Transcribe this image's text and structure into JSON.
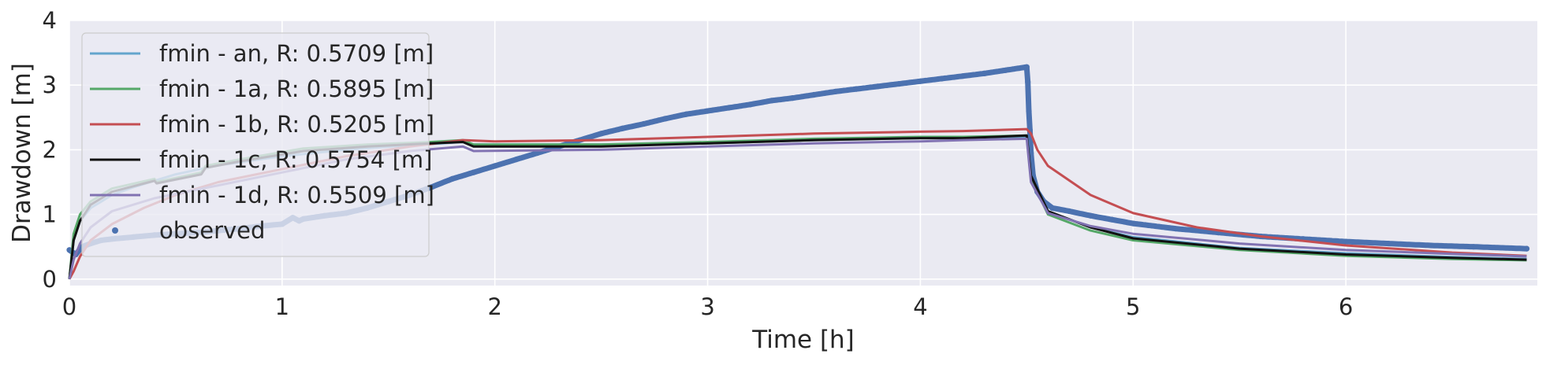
{
  "chart_data": {
    "type": "line",
    "title": "",
    "xlabel": "Time [h]",
    "ylabel": "Drawdown [m]",
    "xlim": [
      0,
      6.9
    ],
    "ylim": [
      -0.1,
      4
    ],
    "xticks": [
      "0",
      "1",
      "2",
      "3",
      "4",
      "5",
      "6"
    ],
    "yticks": [
      "0",
      "1",
      "2",
      "3",
      "4"
    ],
    "grid": true,
    "legend_position": "top-left",
    "colors": {
      "plot_bg": "#eaeaf2",
      "grid": "#ffffff",
      "legend_bg": "#eaeaf2",
      "legend_border": "#cccccc"
    },
    "series": [
      {
        "name": "fmin - an, R: 0.5709 [m]",
        "color": "#64a5cc",
        "x": [
          0,
          0.02,
          0.05,
          0.1,
          0.2,
          0.3,
          0.5,
          0.7,
          1.0,
          1.3,
          1.6,
          1.85,
          1.9,
          2.5,
          3.0,
          3.5,
          4.0,
          4.2,
          4.5,
          4.52,
          4.6,
          4.8,
          5.0,
          5.5,
          6.0,
          6.5,
          6.85
        ],
        "y": [
          0,
          0.6,
          0.9,
          1.1,
          1.3,
          1.42,
          1.62,
          1.76,
          1.9,
          2.0,
          2.07,
          2.12,
          2.08,
          2.08,
          2.1,
          2.15,
          2.18,
          2.18,
          2.2,
          1.6,
          1.05,
          0.8,
          0.65,
          0.48,
          0.4,
          0.34,
          0.31
        ]
      },
      {
        "name": "fmin - 1a, R: 0.5895 [m]",
        "color": "#55a868",
        "x": [
          0,
          0.02,
          0.05,
          0.1,
          0.2,
          0.4,
          0.41,
          0.62,
          0.64,
          0.8,
          1.1,
          1.4,
          1.7,
          1.85,
          1.9,
          2.5,
          3.0,
          3.5,
          4.0,
          4.2,
          4.5,
          4.52,
          4.6,
          4.8,
          5.0,
          5.5,
          6.0,
          6.5,
          6.85
        ],
        "y": [
          0,
          0.7,
          1.0,
          1.2,
          1.4,
          1.55,
          1.5,
          1.65,
          1.75,
          1.85,
          2.02,
          2.08,
          2.12,
          2.15,
          2.08,
          2.08,
          2.12,
          2.17,
          2.2,
          2.2,
          2.22,
          1.55,
          1.0,
          0.75,
          0.6,
          0.45,
          0.36,
          0.31,
          0.29
        ]
      },
      {
        "name": "fmin - 1b, R: 0.5205 [m]",
        "color": "#c44e52",
        "x": [
          0,
          0.02,
          0.05,
          0.1,
          0.2,
          0.35,
          0.5,
          0.7,
          1.0,
          1.3,
          1.6,
          1.85,
          2.0,
          2.5,
          3.0,
          3.5,
          4.0,
          4.2,
          4.5,
          4.52,
          4.55,
          4.6,
          4.8,
          5.0,
          5.3,
          5.6,
          6.0,
          6.5,
          6.85
        ],
        "y": [
          0,
          0.12,
          0.35,
          0.6,
          0.85,
          1.1,
          1.3,
          1.5,
          1.7,
          1.9,
          2.05,
          2.15,
          2.13,
          2.15,
          2.2,
          2.25,
          2.28,
          2.29,
          2.32,
          2.25,
          2.0,
          1.75,
          1.3,
          1.02,
          0.8,
          0.66,
          0.52,
          0.41,
          0.36
        ]
      },
      {
        "name": "fmin - 1c, R: 0.5754 [m]",
        "color": "#111111",
        "x": [
          0,
          0.02,
          0.05,
          0.1,
          0.2,
          0.4,
          0.41,
          0.62,
          0.64,
          0.8,
          1.1,
          1.4,
          1.7,
          1.85,
          1.9,
          2.5,
          3.0,
          3.5,
          4.0,
          4.2,
          4.5,
          4.52,
          4.6,
          4.8,
          5.0,
          5.5,
          6.0,
          6.5,
          6.85
        ],
        "y": [
          0,
          0.6,
          0.9,
          1.15,
          1.35,
          1.52,
          1.48,
          1.62,
          1.72,
          1.82,
          1.98,
          2.05,
          2.1,
          2.12,
          2.05,
          2.05,
          2.1,
          2.15,
          2.18,
          2.18,
          2.22,
          1.6,
          1.05,
          0.8,
          0.63,
          0.47,
          0.38,
          0.33,
          0.3
        ]
      },
      {
        "name": "fmin - 1d, R: 0.5509 [m]",
        "color": "#8172b2",
        "x": [
          0,
          0.02,
          0.05,
          0.1,
          0.2,
          0.4,
          0.7,
          1.0,
          1.3,
          1.6,
          1.85,
          1.9,
          2.5,
          3.0,
          3.5,
          4.0,
          4.2,
          4.5,
          4.52,
          4.6,
          4.8,
          5.0,
          5.5,
          6.0,
          6.5,
          6.85
        ],
        "y": [
          0,
          0.3,
          0.55,
          0.8,
          1.05,
          1.25,
          1.45,
          1.65,
          1.85,
          1.98,
          2.05,
          1.98,
          2.0,
          2.05,
          2.1,
          2.13,
          2.15,
          2.17,
          1.5,
          1.02,
          0.82,
          0.7,
          0.55,
          0.45,
          0.39,
          0.35
        ]
      },
      {
        "name": "observed",
        "color": "#4c72b0",
        "marker": "dot",
        "x": [
          0,
          0.03,
          0.06,
          0.1,
          0.15,
          0.2,
          0.3,
          0.4,
          0.5,
          0.6,
          0.7,
          0.8,
          0.9,
          1.0,
          1.05,
          1.08,
          1.1,
          1.2,
          1.3,
          1.4,
          1.5,
          1.6,
          1.7,
          1.8,
          1.9,
          2.0,
          2.1,
          2.2,
          2.3,
          2.4,
          2.5,
          2.6,
          2.7,
          2.8,
          2.9,
          3.0,
          3.1,
          3.2,
          3.3,
          3.4,
          3.5,
          3.6,
          3.7,
          3.8,
          3.9,
          4.0,
          4.1,
          4.2,
          4.3,
          4.4,
          4.5,
          4.505,
          4.51,
          4.515,
          4.52,
          4.53,
          4.55,
          4.58,
          4.62,
          4.7,
          4.8,
          4.9,
          5.0,
          5.2,
          5.4,
          5.6,
          5.8,
          6.0,
          6.2,
          6.4,
          6.6,
          6.85
        ],
        "y": [
          0.45,
          0.38,
          0.5,
          0.55,
          0.6,
          0.62,
          0.65,
          0.68,
          0.7,
          0.72,
          0.75,
          0.78,
          0.82,
          0.85,
          0.95,
          0.9,
          0.93,
          0.98,
          1.02,
          1.1,
          1.2,
          1.3,
          1.42,
          1.55,
          1.65,
          1.75,
          1.85,
          1.95,
          2.05,
          2.15,
          2.25,
          2.33,
          2.4,
          2.48,
          2.55,
          2.6,
          2.65,
          2.7,
          2.76,
          2.8,
          2.85,
          2.9,
          2.94,
          2.98,
          3.02,
          3.06,
          3.1,
          3.14,
          3.18,
          3.23,
          3.28,
          3.05,
          2.6,
          2.3,
          1.95,
          1.6,
          1.35,
          1.2,
          1.1,
          1.05,
          0.98,
          0.92,
          0.86,
          0.78,
          0.72,
          0.66,
          0.62,
          0.58,
          0.55,
          0.52,
          0.5,
          0.47
        ]
      }
    ]
  }
}
